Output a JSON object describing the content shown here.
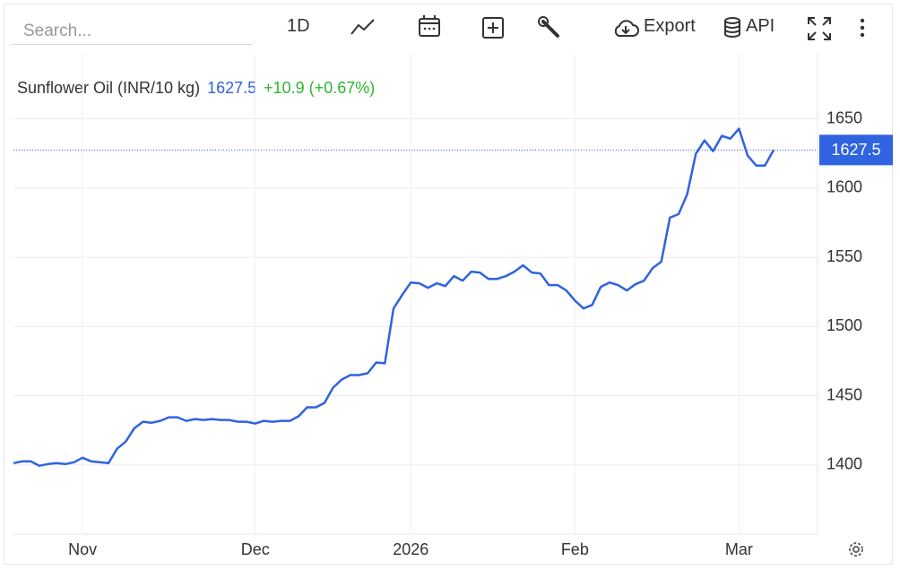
{
  "toolbar": {
    "search_placeholder": "Search...",
    "interval": "1D",
    "export": "Export",
    "api": "API"
  },
  "chart_data": {
    "type": "line",
    "title": "Sunflower Oil (INR/10 kg)",
    "change": "+10.9 (+0.67%)",
    "change_color": "#2fb62f",
    "color": "#2f63e0",
    "categories": [
      null,
      null,
      null,
      null,
      null,
      null,
      null,
      null,
      "Nov",
      null,
      null,
      null,
      null,
      null,
      null,
      null,
      null,
      null,
      null,
      null,
      null,
      null,
      null,
      null,
      null,
      null,
      null,
      null,
      "Dec",
      null,
      null,
      null,
      null,
      null,
      null,
      null,
      null,
      null,
      null,
      null,
      null,
      null,
      null,
      null,
      null,
      null,
      "2026",
      null,
      null,
      null,
      null,
      null,
      null,
      null,
      null,
      null,
      null,
      null,
      null,
      null,
      null,
      null,
      null,
      null,
      null,
      "Feb",
      null,
      null,
      null,
      null,
      null,
      null,
      null,
      null,
      null,
      null,
      null,
      null,
      null,
      null,
      null,
      null,
      null,
      null,
      "Mar",
      null,
      null,
      null,
      null
    ],
    "values": [
      1401.3,
      1402.6,
      1402.6,
      1399.4,
      1400.6,
      1401.3,
      1400.6,
      1401.9,
      1405.2,
      1402.6,
      1401.9,
      1401.3,
      1411.7,
      1416.9,
      1426.6,
      1431.2,
      1430.5,
      1431.8,
      1434.4,
      1434.4,
      1431.8,
      1433.1,
      1432.5,
      1433.1,
      1432.5,
      1432.5,
      1431.2,
      1431.2,
      1429.9,
      1431.8,
      1431.2,
      1431.8,
      1431.8,
      1435.1,
      1441.6,
      1441.6,
      1444.8,
      1455.8,
      1461.7,
      1464.9,
      1464.9,
      1466.2,
      1474.0,
      1473.4,
      1513.0,
      1522.7,
      1531.8,
      1531.2,
      1527.9,
      1531.2,
      1529.2,
      1536.4,
      1533.1,
      1539.6,
      1539.0,
      1534.4,
      1534.4,
      1536.4,
      1539.6,
      1544.2,
      1539.0,
      1538.3,
      1529.9,
      1529.9,
      1526.0,
      1518.8,
      1513.0,
      1515.6,
      1528.6,
      1531.8,
      1529.9,
      1526.0,
      1530.5,
      1533.1,
      1542.2,
      1546.8,
      1578.6,
      1581.2,
      1595.5,
      1624.7,
      1634.4,
      1626.6,
      1637.7,
      1635.7,
      1642.9,
      1623.4,
      1616.2,
      1616.2,
      1627.5
    ],
    "ylim": [
      1350,
      1697
    ],
    "yticks": [
      1400,
      1450,
      1500,
      1550,
      1600,
      1650
    ],
    "grid": true
  }
}
